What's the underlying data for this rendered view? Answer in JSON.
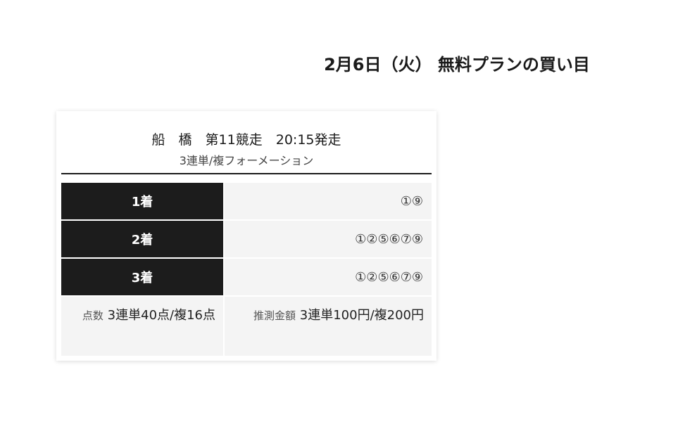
{
  "title": "2月6日（火） 無料プランの買い目",
  "race": {
    "venue": "船　橋",
    "race_no": "第11競走",
    "start": "20:15発走",
    "bet_type": "3連単/複フォーメーション"
  },
  "rows": [
    {
      "label": "1着",
      "value": "①⑨"
    },
    {
      "label": "2着",
      "value": "①②⑤⑥⑦⑨"
    },
    {
      "label": "3着",
      "value": "①②⑤⑥⑦⑨"
    }
  ],
  "footer": {
    "points_label": "点数",
    "points_value": "3連単40点/複16点",
    "amount_label": "推測金額",
    "amount_value": "3連単100円/複200円"
  }
}
